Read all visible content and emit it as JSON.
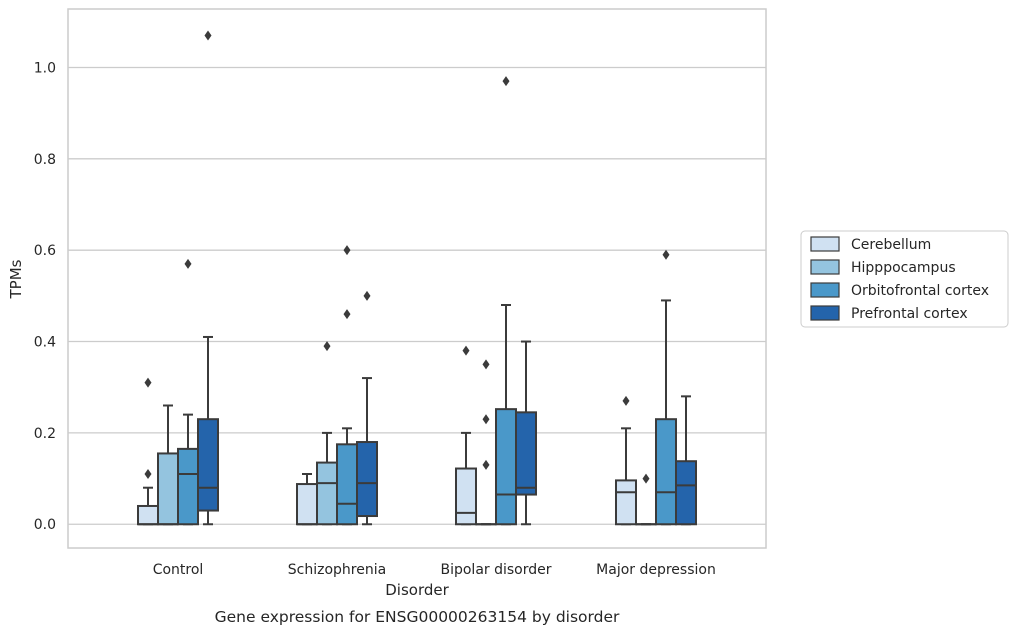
{
  "chart_data": {
    "type": "box",
    "caption": "Gene expression for ENSG00000263154 by disorder",
    "xlabel": "Disorder",
    "ylabel": "TPMs",
    "ylim": [
      -0.052,
      1.128
    ],
    "yticks": [
      0.0,
      0.2,
      0.4,
      0.6,
      0.8,
      1.0
    ],
    "ytick_labels": [
      "0.0",
      "0.2",
      "0.4",
      "0.6",
      "0.8",
      "1.0"
    ],
    "grid": "horizontal",
    "legend_position": "right",
    "categories": [
      "Control",
      "Schizophrenia",
      "Bipolar disorder",
      "Major depression"
    ],
    "series": [
      {
        "name": "Cerebellum",
        "color": "#d0e1f2",
        "boxes": [
          {
            "whisker_low": 0.0,
            "q1": 0.0,
            "median": 0.0,
            "q3": 0.04,
            "whisker_high": 0.08,
            "outliers": [
              0.11,
              0.31
            ]
          },
          {
            "whisker_low": 0.0,
            "q1": 0.0,
            "median": 0.0,
            "q3": 0.088,
            "whisker_high": 0.11,
            "outliers": []
          },
          {
            "whisker_low": 0.0,
            "q1": 0.0,
            "median": 0.025,
            "q3": 0.122,
            "whisker_high": 0.2,
            "outliers": [
              0.38
            ]
          },
          {
            "whisker_low": 0.0,
            "q1": 0.0,
            "median": 0.07,
            "q3": 0.096,
            "whisker_high": 0.21,
            "outliers": [
              0.27
            ]
          }
        ]
      },
      {
        "name": "Hipppocampus",
        "color": "#94c4df",
        "boxes": [
          {
            "whisker_low": 0.0,
            "q1": 0.0,
            "median": 0.0,
            "q3": 0.155,
            "whisker_high": 0.26,
            "outliers": []
          },
          {
            "whisker_low": 0.0,
            "q1": 0.0,
            "median": 0.09,
            "q3": 0.135,
            "whisker_high": 0.2,
            "outliers": [
              0.39
            ]
          },
          {
            "whisker_low": 0.0,
            "q1": 0.0,
            "median": 0.0,
            "q3": 0.0,
            "whisker_high": 0.0,
            "outliers": [
              0.13,
              0.23,
              0.35
            ]
          },
          {
            "whisker_low": 0.0,
            "q1": 0.0,
            "median": 0.0,
            "q3": 0.0,
            "whisker_high": 0.0,
            "outliers": [
              0.1
            ]
          }
        ]
      },
      {
        "name": "Orbitofrontal cortex",
        "color": "#4a98c9",
        "boxes": [
          {
            "whisker_low": 0.0,
            "q1": 0.0,
            "median": 0.11,
            "q3": 0.165,
            "whisker_high": 0.24,
            "outliers": [
              0.57
            ]
          },
          {
            "whisker_low": 0.0,
            "q1": 0.0,
            "median": 0.045,
            "q3": 0.175,
            "whisker_high": 0.21,
            "outliers": [
              0.46,
              0.6
            ]
          },
          {
            "whisker_low": 0.0,
            "q1": 0.0,
            "median": 0.065,
            "q3": 0.252,
            "whisker_high": 0.48,
            "outliers": [
              0.97
            ]
          },
          {
            "whisker_low": 0.0,
            "q1": 0.0,
            "median": 0.07,
            "q3": 0.23,
            "whisker_high": 0.49,
            "outliers": [
              0.59
            ]
          }
        ]
      },
      {
        "name": "Prefrontal cortex",
        "color": "#2464ab",
        "boxes": [
          {
            "whisker_low": 0.0,
            "q1": 0.03,
            "median": 0.08,
            "q3": 0.23,
            "whisker_high": 0.41,
            "outliers": [
              1.07
            ]
          },
          {
            "whisker_low": 0.0,
            "q1": 0.018,
            "median": 0.09,
            "q3": 0.18,
            "whisker_high": 0.32,
            "outliers": [
              0.5
            ]
          },
          {
            "whisker_low": 0.0,
            "q1": 0.065,
            "median": 0.08,
            "q3": 0.245,
            "whisker_high": 0.4,
            "outliers": []
          },
          {
            "whisker_low": 0.0,
            "q1": 0.0,
            "median": 0.085,
            "q3": 0.138,
            "whisker_high": 0.28,
            "outliers": []
          }
        ]
      }
    ]
  }
}
